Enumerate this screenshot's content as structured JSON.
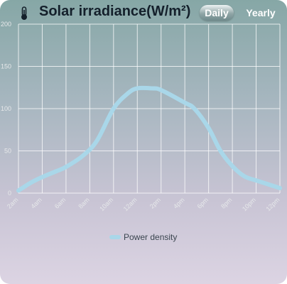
{
  "header": {
    "title": "Solar irradiance(W/m²)",
    "icon": "thermometer-icon",
    "tabs": {
      "daily": "Daily",
      "yearly": "Yearly"
    },
    "selected_tab": "Daily"
  },
  "chart_data": {
    "type": "line",
    "title": "Solar irradiance(W/m²)",
    "xlabel": "",
    "ylabel": "",
    "categories": [
      "2am",
      "4am",
      "6am",
      "8am",
      "10am",
      "12am",
      "2pm",
      "4pm",
      "6pm",
      "8pm",
      "10pm",
      "12pm"
    ],
    "series": [
      {
        "name": "Power density",
        "color": "#a9d7e9",
        "x": [
          0,
          0.5,
          1,
          1.6,
          2,
          2.7,
          3.3,
          4,
          4.6,
          5,
          5.6,
          6,
          7,
          7.4,
          8,
          8.5,
          9,
          9.5,
          10,
          11
        ],
        "values": [
          3,
          12,
          19,
          26,
          31,
          44,
          62,
          100,
          118,
          124,
          124,
          122,
          107,
          100,
          77,
          50,
          32,
          20,
          15,
          6
        ]
      }
    ],
    "yticks": [
      0,
      50,
      100,
      150,
      200
    ],
    "ylim": [
      0,
      200
    ],
    "grid": true,
    "legend": "bottom-center"
  }
}
